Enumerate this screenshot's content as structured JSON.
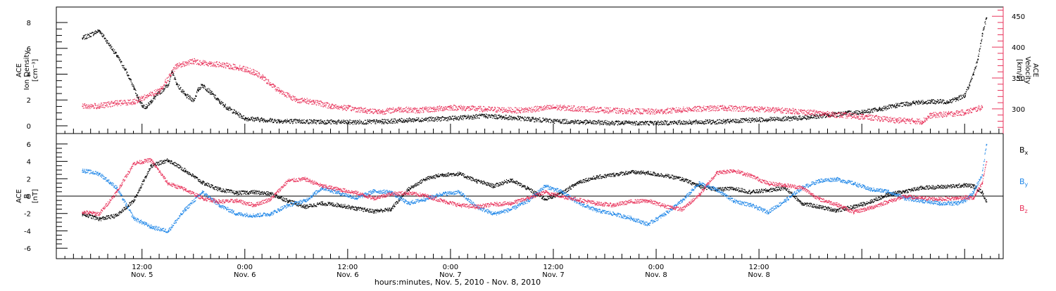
{
  "colors": {
    "black": "#000000",
    "pink": "#e8325a",
    "blue": "#1e86e8"
  },
  "chart_data": [
    {
      "type": "scatter",
      "panel": "plasma",
      "ylabel_left": [
        "ACE",
        "Ion Density",
        "[cm⁻³]"
      ],
      "ylabel_right": [
        "ACE",
        "Velocity",
        "[km/s]"
      ],
      "yticks_left": [
        "0",
        "2",
        "4",
        "6",
        "8"
      ],
      "yticks_right": [
        "300",
        "350",
        "400",
        "450"
      ],
      "ylim_left": [
        -0.6,
        9.2
      ],
      "ylim_right": [
        260,
        465
      ],
      "series": [
        {
          "color_key": "black",
          "axis": "left",
          "x": [
            5.0,
            7.0,
            9.0,
            10.0,
            11.0,
            11.5,
            12.0,
            12.5,
            13.0,
            14.0,
            15.0,
            15.5,
            16.0,
            17.0,
            18.0,
            18.5,
            19.0,
            20.0,
            21.0,
            22.0,
            23.0,
            24.0,
            26.0,
            28.0,
            32.0,
            36.0,
            40.0,
            44.0,
            48.0,
            52.0,
            56.0,
            60.0,
            64.0,
            68.0,
            72.0,
            76.0,
            80.0,
            84.0,
            88.0,
            90.0,
            92.0,
            94.0,
            96.0,
            98.0,
            100.0,
            102.0,
            104.0,
            106.0,
            107.0,
            108.0,
            108.5,
            109.0,
            109.5,
            110.0,
            110.5
          ],
          "values": [
            6.8,
            7.4,
            5.5,
            4.4,
            3.0,
            2.2,
            1.6,
            1.5,
            1.9,
            2.6,
            3.2,
            4.2,
            3.3,
            2.4,
            2.0,
            2.8,
            3.2,
            2.6,
            1.9,
            1.4,
            1.0,
            0.6,
            0.5,
            0.4,
            0.35,
            0.3,
            0.35,
            0.5,
            0.6,
            0.8,
            0.6,
            0.4,
            0.3,
            0.25,
            0.25,
            0.3,
            0.35,
            0.5,
            0.6,
            0.7,
            0.85,
            1.0,
            1.1,
            1.3,
            1.6,
            1.8,
            1.9,
            1.9,
            2.1,
            2.4,
            3.2,
            4.0,
            5.2,
            7.0,
            8.4
          ]
        },
        {
          "color_key": "pink",
          "axis": "right",
          "x": [
            5.0,
            7.0,
            9.0,
            11.0,
            12.0,
            14.0,
            16.0,
            18.0,
            19.0,
            20.0,
            22.0,
            23.0,
            24.0,
            25.0,
            26.0,
            27.0,
            28.0,
            30.0,
            32.0,
            34.0,
            36.0,
            38.0,
            40.0,
            42.0,
            44.0,
            46.0,
            48.0,
            52.0,
            56.0,
            60.0,
            64.0,
            68.0,
            72.0,
            76.0,
            80.0,
            84.0,
            88.0,
            92.0,
            96.0,
            100.0,
            102.0,
            103.0,
            104.0,
            106.0,
            108.0,
            110.0
          ],
          "values": [
            305,
            305,
            310,
            312,
            318,
            330,
            370,
            378,
            375,
            374,
            370,
            368,
            365,
            360,
            352,
            340,
            330,
            315,
            312,
            305,
            302,
            298,
            296,
            300,
            298,
            300,
            303,
            300,
            298,
            303,
            300,
            297,
            296,
            300,
            302,
            300,
            297,
            292,
            288,
            282,
            281,
            280,
            290,
            292,
            295,
            303
          ]
        }
      ]
    },
    {
      "type": "scatter",
      "panel": "field",
      "ylabel_left": [
        "ACE",
        "B",
        "[nT]"
      ],
      "yticks_left": [
        "-6",
        "-4",
        "-2",
        "0",
        "2",
        "4",
        "6"
      ],
      "ylim_left": [
        -7.2,
        7.2
      ],
      "legend": [
        "Bx",
        "By",
        "Bz"
      ],
      "series": [
        {
          "name": "Bx",
          "color_key": "black",
          "x": [
            5.0,
            7.0,
            9.0,
            11.0,
            13.0,
            15.0,
            17.0,
            19.0,
            21.0,
            23.0,
            25.0,
            27.0,
            29.0,
            31.0,
            33.0,
            35.0,
            37.0,
            39.0,
            41.0,
            43.0,
            45.0,
            47.0,
            49.0,
            51.0,
            53.0,
            55.0,
            57.0,
            59.0,
            61.0,
            63.0,
            65.0,
            67.0,
            69.0,
            71.0,
            73.0,
            75.0,
            77.0,
            79.0,
            81.0,
            83.0,
            85.0,
            87.0,
            89.0,
            91.0,
            93.0,
            95.0,
            97.0,
            99.0,
            101.0,
            103.0,
            105.0,
            107.0,
            108.0,
            109.0,
            110.0,
            110.5
          ],
          "values": [
            -2.0,
            -2.6,
            -2.2,
            -0.5,
            3.5,
            4.2,
            3.0,
            1.6,
            0.8,
            0.4,
            0.5,
            0.3,
            -0.5,
            -1.2,
            -0.8,
            -1.0,
            -1.4,
            -1.7,
            -1.5,
            0.8,
            2.0,
            2.5,
            2.6,
            1.8,
            1.2,
            1.9,
            0.9,
            -0.3,
            0.4,
            1.7,
            2.2,
            2.5,
            2.8,
            2.7,
            2.4,
            2.0,
            1.2,
            0.8,
            0.9,
            0.5,
            0.7,
            1.0,
            -0.8,
            -1.2,
            -1.6,
            -1.2,
            -0.6,
            0.2,
            0.6,
            1.0,
            1.1,
            1.2,
            1.3,
            1.2,
            0.5,
            -0.6
          ]
        },
        {
          "name": "By",
          "color_key": "blue",
          "x": [
            5.0,
            7.0,
            9.0,
            11.0,
            13.0,
            15.0,
            17.0,
            19.0,
            21.0,
            23.0,
            25.0,
            27.0,
            29.0,
            31.0,
            33.0,
            35.0,
            37.0,
            39.0,
            41.0,
            43.0,
            45.0,
            47.0,
            49.0,
            51.0,
            53.0,
            55.0,
            57.0,
            59.0,
            61.0,
            63.0,
            65.0,
            67.0,
            69.0,
            71.0,
            73.0,
            75.0,
            77.0,
            79.0,
            81.0,
            83.0,
            85.0,
            87.0,
            89.0,
            91.0,
            93.0,
            95.0,
            97.0,
            99.0,
            101.0,
            103.0,
            105.0,
            107.0,
            108.0,
            109.0,
            110.0,
            110.5
          ],
          "values": [
            3.0,
            2.6,
            1.0,
            -2.5,
            -3.5,
            -4.0,
            -1.5,
            0.5,
            -1.0,
            -2.0,
            -2.2,
            -2.0,
            -1.0,
            -0.5,
            1.0,
            0.4,
            -0.2,
            0.6,
            0.5,
            -0.8,
            -0.3,
            0.3,
            0.5,
            -1.2,
            -2.0,
            -1.5,
            -0.5,
            1.2,
            0.5,
            -0.8,
            -1.6,
            -2.0,
            -2.5,
            -3.2,
            -2.0,
            -0.5,
            1.5,
            0.8,
            -0.5,
            -1.0,
            -1.8,
            -0.5,
            1.0,
            1.8,
            2.0,
            1.5,
            0.8,
            0.6,
            -0.2,
            -0.5,
            -0.8,
            -0.8,
            -0.5,
            0.5,
            2.5,
            6.0
          ]
        },
        {
          "name": "Bz",
          "color_key": "pink",
          "x": [
            5.0,
            7.0,
            9.0,
            11.0,
            13.0,
            15.0,
            17.0,
            19.0,
            21.0,
            23.0,
            25.0,
            27.0,
            29.0,
            31.0,
            33.0,
            35.0,
            37.0,
            39.0,
            41.0,
            43.0,
            45.0,
            47.0,
            49.0,
            51.0,
            53.0,
            55.0,
            57.0,
            59.0,
            61.0,
            63.0,
            65.0,
            67.0,
            69.0,
            71.0,
            73.0,
            75.0,
            77.0,
            79.0,
            81.0,
            83.0,
            85.0,
            87.0,
            89.0,
            91.0,
            93.0,
            95.0,
            97.0,
            99.0,
            101.0,
            103.0,
            105.0,
            107.0,
            108.0,
            109.0,
            110.0,
            110.5
          ],
          "values": [
            -1.8,
            -2.0,
            0.5,
            3.8,
            4.2,
            1.5,
            0.8,
            -0.2,
            -0.6,
            -0.5,
            -1.0,
            -0.3,
            1.8,
            2.0,
            1.2,
            0.8,
            0.4,
            -0.2,
            0.3,
            0.4,
            0.1,
            -0.5,
            -1.0,
            -1.2,
            -0.9,
            -0.8,
            -0.2,
            0.5,
            0.0,
            -0.4,
            -0.8,
            -1.0,
            -0.6,
            -0.5,
            -1.1,
            -1.5,
            0.2,
            2.7,
            3.0,
            2.4,
            1.5,
            1.3,
            1.0,
            -0.3,
            -0.9,
            -1.8,
            -1.3,
            -0.6,
            0.0,
            -0.2,
            -0.3,
            -0.2,
            -0.1,
            -0.2,
            1.5,
            4.0
          ]
        }
      ]
    }
  ],
  "x_axis": {
    "range_hours": [
      2.0,
      112.5
    ],
    "ticks": [
      {
        "hour": 12,
        "time": "12:00",
        "date": "Nov. 5"
      },
      {
        "hour": 24,
        "time": "0:00",
        "date": "Nov. 6"
      },
      {
        "hour": 36,
        "time": "12:00",
        "date": "Nov. 6"
      },
      {
        "hour": 48,
        "time": "0:00",
        "date": "Nov. 7"
      },
      {
        "hour": 60,
        "time": "12:00",
        "date": "Nov. 7"
      },
      {
        "hour": 72,
        "time": "0:00",
        "date": "Nov. 8"
      },
      {
        "hour": 84,
        "time": "12:00",
        "date": "Nov. 8"
      }
    ],
    "label": "hours:minutes, Nov.  5, 2010 - Nov.  8, 2010"
  },
  "legend_labels": {
    "bx_base": "B",
    "bx_sub": "x",
    "by_base": "B",
    "by_sub": "y",
    "bz_base": "B",
    "bz_sub": "z"
  }
}
